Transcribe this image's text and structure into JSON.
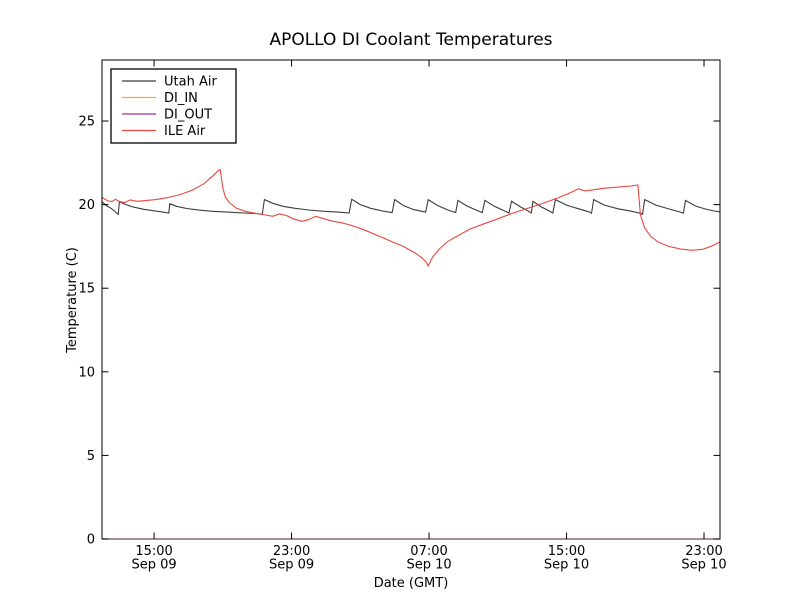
{
  "figure": {
    "background": "#ffffff",
    "spine_color": "#000000",
    "bottom_spine_blend_color": "#6e4b51"
  },
  "chart_data": {
    "type": "line",
    "title": "APOLLO DI Coolant Temperatures",
    "xlabel": "Date (GMT)",
    "ylabel": "Temperature (C)",
    "x_unit": "hours since Sep 09 00:00 GMT",
    "xlim": [
      11.97,
      47.93
    ],
    "ylim": [
      0,
      28.65
    ],
    "grid": false,
    "legend_position": "upper left",
    "tick_direction": "in",
    "x_ticks": [
      {
        "x": 15,
        "time": "15:00",
        "date": "Sep 09"
      },
      {
        "x": 23,
        "time": "23:00",
        "date": "Sep 09"
      },
      {
        "x": 31,
        "time": "07:00",
        "date": "Sep 10"
      },
      {
        "x": 39,
        "time": "15:00",
        "date": "Sep 10"
      },
      {
        "x": 47,
        "time": "23:00",
        "date": "Sep 10"
      }
    ],
    "y_ticks": [
      0,
      5,
      10,
      15,
      20,
      25
    ],
    "series": [
      {
        "name": "Utah Air",
        "color": "#3c3c3c",
        "points": [
          [
            12.0,
            20.15
          ],
          [
            12.25,
            19.92
          ],
          [
            12.5,
            19.78
          ],
          [
            12.7,
            19.62
          ],
          [
            12.85,
            19.47
          ],
          [
            12.92,
            19.42
          ],
          [
            12.98,
            20.18
          ],
          [
            13.3,
            20.02
          ],
          [
            13.8,
            19.85
          ],
          [
            14.4,
            19.72
          ],
          [
            15.0,
            19.63
          ],
          [
            15.5,
            19.55
          ],
          [
            15.85,
            19.5
          ],
          [
            15.92,
            20.05
          ],
          [
            16.3,
            19.9
          ],
          [
            16.9,
            19.77
          ],
          [
            17.6,
            19.67
          ],
          [
            18.4,
            19.6
          ],
          [
            19.3,
            19.55
          ],
          [
            20.2,
            19.5
          ],
          [
            21.0,
            19.46
          ],
          [
            21.3,
            19.42
          ],
          [
            21.42,
            20.3
          ],
          [
            21.9,
            20.08
          ],
          [
            22.5,
            19.9
          ],
          [
            23.2,
            19.78
          ],
          [
            24.0,
            19.68
          ],
          [
            24.9,
            19.6
          ],
          [
            25.7,
            19.55
          ],
          [
            26.35,
            19.5
          ],
          [
            26.5,
            20.32
          ],
          [
            27.0,
            20.0
          ],
          [
            27.6,
            19.78
          ],
          [
            28.3,
            19.62
          ],
          [
            28.85,
            19.52
          ],
          [
            29.0,
            20.3
          ],
          [
            29.5,
            19.95
          ],
          [
            30.1,
            19.7
          ],
          [
            30.8,
            19.55
          ],
          [
            30.95,
            20.3
          ],
          [
            31.5,
            19.95
          ],
          [
            32.1,
            19.68
          ],
          [
            32.55,
            19.53
          ],
          [
            32.68,
            20.25
          ],
          [
            33.2,
            19.92
          ],
          [
            33.8,
            19.65
          ],
          [
            34.1,
            19.52
          ],
          [
            34.25,
            20.25
          ],
          [
            34.8,
            19.9
          ],
          [
            35.4,
            19.62
          ],
          [
            35.65,
            19.5
          ],
          [
            35.8,
            20.2
          ],
          [
            36.3,
            19.88
          ],
          [
            36.8,
            19.6
          ],
          [
            36.95,
            19.5
          ],
          [
            37.05,
            20.2
          ],
          [
            37.5,
            19.88
          ],
          [
            38.0,
            19.62
          ],
          [
            38.2,
            19.5
          ],
          [
            38.35,
            20.3
          ],
          [
            39.0,
            19.97
          ],
          [
            39.7,
            19.75
          ],
          [
            40.3,
            19.57
          ],
          [
            40.45,
            19.48
          ],
          [
            40.58,
            20.3
          ],
          [
            41.2,
            19.97
          ],
          [
            42.0,
            19.75
          ],
          [
            42.8,
            19.6
          ],
          [
            43.3,
            19.48
          ],
          [
            43.42,
            19.42
          ],
          [
            43.55,
            20.3
          ],
          [
            44.2,
            19.97
          ],
          [
            45.0,
            19.73
          ],
          [
            45.6,
            19.56
          ],
          [
            45.8,
            19.48
          ],
          [
            45.92,
            20.25
          ],
          [
            46.5,
            19.92
          ],
          [
            47.1,
            19.73
          ],
          [
            47.6,
            19.62
          ],
          [
            47.9,
            19.57
          ]
        ]
      },
      {
        "name": "DI_IN",
        "color": "#ffa733",
        "points": [
          [
            11.97,
            0
          ],
          [
            47.93,
            0
          ]
        ]
      },
      {
        "name": "DI_OUT",
        "color": "#993399",
        "points": [
          [
            11.97,
            0
          ],
          [
            47.93,
            0
          ]
        ]
      },
      {
        "name": "ILE Air",
        "color": "#e8483f",
        "points": [
          [
            12.0,
            20.42
          ],
          [
            12.3,
            20.22
          ],
          [
            12.55,
            20.18
          ],
          [
            12.75,
            20.32
          ],
          [
            13.0,
            20.18
          ],
          [
            13.3,
            20.12
          ],
          [
            13.6,
            20.28
          ],
          [
            14.0,
            20.2
          ],
          [
            14.5,
            20.24
          ],
          [
            15.1,
            20.3
          ],
          [
            15.8,
            20.42
          ],
          [
            16.5,
            20.6
          ],
          [
            17.2,
            20.85
          ],
          [
            17.9,
            21.25
          ],
          [
            18.4,
            21.7
          ],
          [
            18.75,
            22.05
          ],
          [
            18.85,
            22.1
          ],
          [
            19.0,
            21.0
          ],
          [
            19.15,
            20.45
          ],
          [
            19.4,
            20.1
          ],
          [
            19.8,
            19.78
          ],
          [
            20.3,
            19.6
          ],
          [
            20.9,
            19.48
          ],
          [
            21.5,
            19.38
          ],
          [
            21.9,
            19.3
          ],
          [
            22.3,
            19.45
          ],
          [
            22.7,
            19.35
          ],
          [
            23.1,
            19.15
          ],
          [
            23.6,
            19.0
          ],
          [
            24.0,
            19.1
          ],
          [
            24.4,
            19.3
          ],
          [
            24.9,
            19.15
          ],
          [
            25.4,
            19.0
          ],
          [
            25.9,
            18.92
          ],
          [
            26.5,
            18.75
          ],
          [
            27.2,
            18.5
          ],
          [
            28.0,
            18.15
          ],
          [
            28.8,
            17.8
          ],
          [
            29.5,
            17.5
          ],
          [
            30.2,
            17.1
          ],
          [
            30.6,
            16.8
          ],
          [
            30.85,
            16.55
          ],
          [
            30.95,
            16.32
          ],
          [
            31.2,
            16.85
          ],
          [
            31.6,
            17.35
          ],
          [
            32.1,
            17.8
          ],
          [
            32.7,
            18.15
          ],
          [
            33.4,
            18.55
          ],
          [
            34.2,
            18.85
          ],
          [
            35.0,
            19.15
          ],
          [
            35.9,
            19.5
          ],
          [
            36.8,
            19.8
          ],
          [
            37.7,
            20.1
          ],
          [
            38.5,
            20.4
          ],
          [
            39.2,
            20.7
          ],
          [
            39.7,
            20.95
          ],
          [
            40.05,
            20.82
          ],
          [
            40.5,
            20.88
          ],
          [
            41.2,
            20.98
          ],
          [
            42.0,
            21.05
          ],
          [
            42.8,
            21.12
          ],
          [
            43.15,
            21.18
          ],
          [
            43.3,
            19.4
          ],
          [
            43.55,
            18.6
          ],
          [
            43.9,
            18.1
          ],
          [
            44.3,
            17.78
          ],
          [
            44.9,
            17.52
          ],
          [
            45.6,
            17.35
          ],
          [
            46.3,
            17.27
          ],
          [
            46.9,
            17.32
          ],
          [
            47.4,
            17.5
          ],
          [
            47.9,
            17.75
          ]
        ]
      }
    ]
  }
}
